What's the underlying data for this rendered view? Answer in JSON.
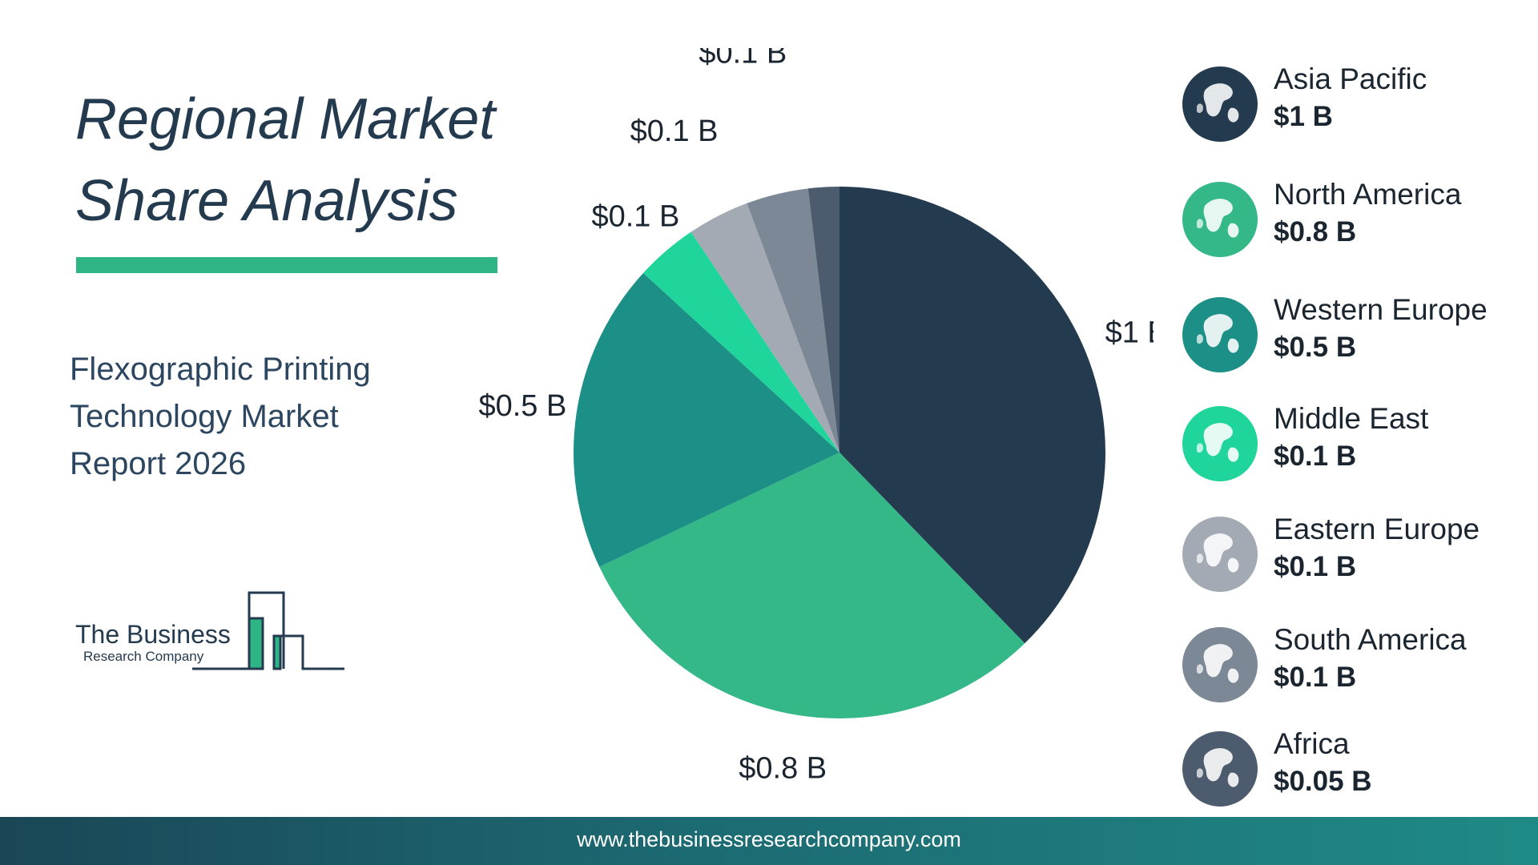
{
  "title": {
    "line1": "Regional Market",
    "line2": "Share Analysis"
  },
  "subtitle": {
    "line1": "Flexographic Printing",
    "line2": "Technology Market",
    "line3": "Report 2026"
  },
  "logo": {
    "line1": "The Business",
    "line2": "Research Company"
  },
  "footer": {
    "url": "www.thebusinessresearchcompany.com"
  },
  "colors": {
    "asia_pacific": "#243a4f",
    "north_america": "#35b888",
    "western_europe": "#1c8f86",
    "middle_east": "#20d59b",
    "eastern_europe": "#a4aab4",
    "south_america": "#7c8895",
    "africa": "#4c5c6e",
    "accent": "#2fb585"
  },
  "chart_data": {
    "type": "pie",
    "title": "",
    "unit": "$ B",
    "slices": [
      {
        "name": "Asia Pacific",
        "value": 1,
        "label": "$1 B",
        "color": "#243a4f",
        "icon": "globe-asia-icon"
      },
      {
        "name": "North America",
        "value": 0.8,
        "label": "$0.8 B",
        "color": "#35b888",
        "icon": "globe-north-america-icon"
      },
      {
        "name": "Western Europe",
        "value": 0.5,
        "label": "$0.5 B",
        "color": "#1c8f86",
        "icon": "globe-western-europe-icon"
      },
      {
        "name": "Middle East",
        "value": 0.1,
        "label": "$0.1 B",
        "color": "#20d59b",
        "icon": "globe-middle-east-icon"
      },
      {
        "name": "Eastern Europe",
        "value": 0.1,
        "label": "$0.1 B",
        "color": "#a4aab4",
        "icon": "globe-eastern-europe-icon"
      },
      {
        "name": "South America",
        "value": 0.1,
        "label": "$0.1 B",
        "color": "#7c8895",
        "icon": "globe-south-america-icon"
      },
      {
        "name": "Africa",
        "value": 0.05,
        "label": "$0.05 B",
        "color": "#4c5c6e",
        "icon": "globe-africa-icon"
      }
    ],
    "legend_position": "right"
  }
}
